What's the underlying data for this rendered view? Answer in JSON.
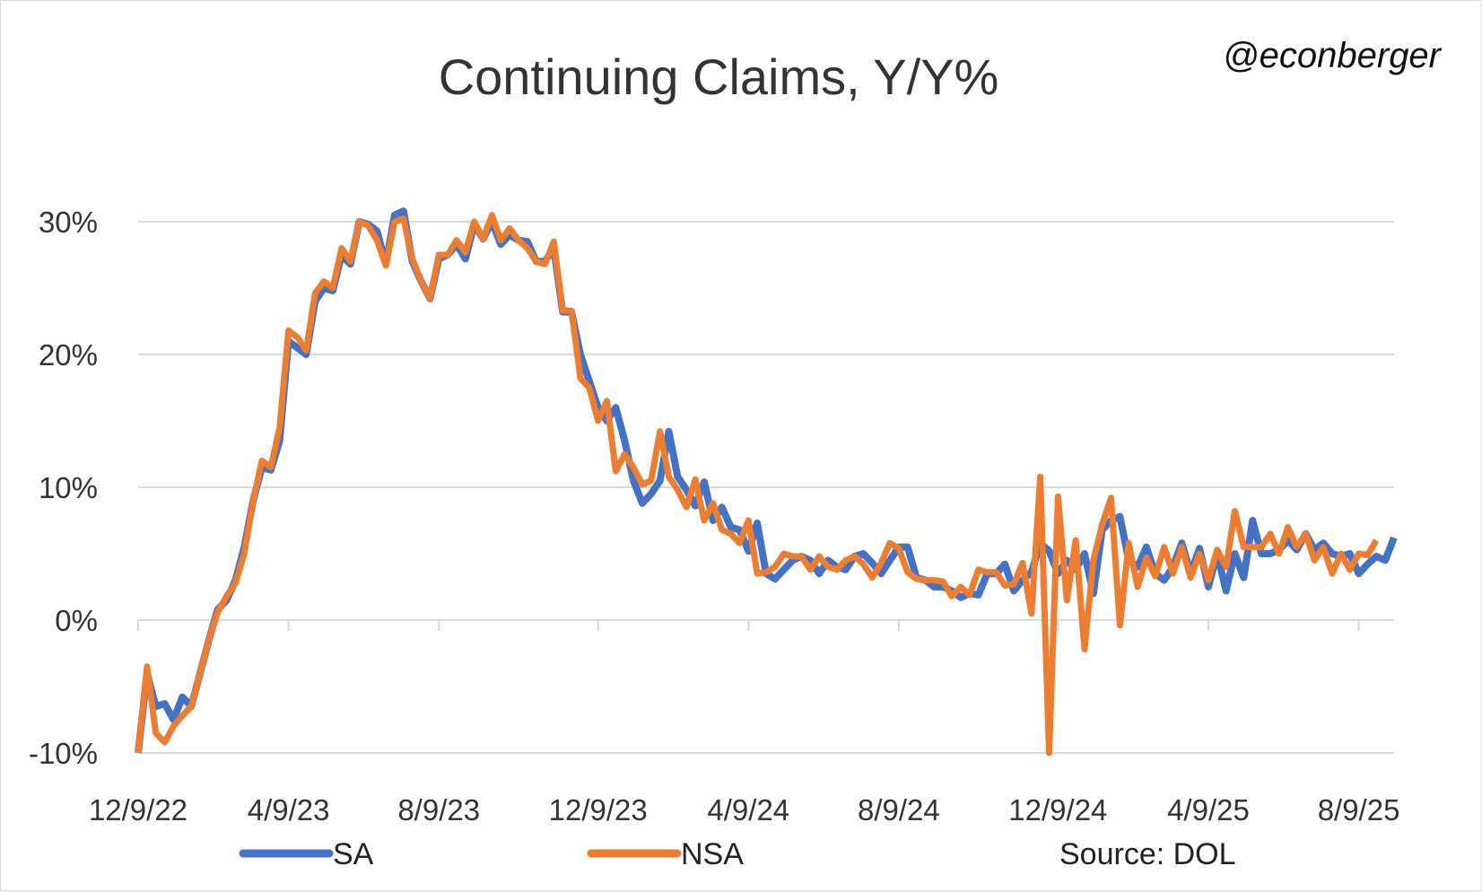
{
  "chart_data": {
    "type": "line",
    "title": "Continuing Claims, Y/Y%",
    "watermark": "@econberger",
    "source": "Source: DOL",
    "xlabel": "",
    "ylabel": "",
    "ylim": [
      -10,
      30
    ],
    "yticks": [
      {
        "value": 30,
        "label": "30%"
      },
      {
        "value": 20,
        "label": "20%"
      },
      {
        "value": 10,
        "label": "10%"
      },
      {
        "value": 0,
        "label": "0%"
      },
      {
        "value": -10,
        "label": "-10%"
      }
    ],
    "xticks": [
      {
        "label": "12/9/22",
        "index": 0
      },
      {
        "label": "4/9/23",
        "index": 17
      },
      {
        "label": "8/9/23",
        "index": 34
      },
      {
        "label": "12/9/23",
        "index": 52
      },
      {
        "label": "4/9/24",
        "index": 69
      },
      {
        "label": "8/9/24",
        "index": 86
      },
      {
        "label": "12/9/24",
        "index": 104
      },
      {
        "label": "4/9/25",
        "index": 121
      },
      {
        "label": "8/9/25",
        "index": 138
      }
    ],
    "legend_position": "bottom",
    "grid": true,
    "series": [
      {
        "name": "SA",
        "color": "#4472c4",
        "values": [
          -10,
          -4,
          -6.5,
          -6.3,
          -7.5,
          -5.8,
          -6.5,
          -4,
          -1.5,
          0.8,
          1.5,
          3,
          5.5,
          9,
          11.5,
          11.3,
          13.5,
          21,
          20.5,
          20,
          24,
          25,
          24.8,
          27.5,
          26.8,
          30,
          29.8,
          29.3,
          26.8,
          30.5,
          30.8,
          27,
          25.5,
          24.2,
          27.2,
          27.5,
          28.3,
          27.2,
          29.8,
          28.7,
          30,
          28.3,
          29,
          28.6,
          28.5,
          27,
          27,
          28,
          23.2,
          23.2,
          20,
          18,
          16,
          15,
          16,
          13.5,
          10.5,
          8.8,
          9.5,
          10.5,
          14.2,
          10.8,
          9.8,
          8.6,
          10.4,
          7.5,
          8.5,
          7,
          6.8,
          5.2,
          7.3,
          3.5,
          3.1,
          3.8,
          4.5,
          4.8,
          4.5,
          3.5,
          4.5,
          4,
          3.8,
          4.8,
          5,
          4.3,
          3.5,
          4.5,
          5.5,
          5.5,
          3.2,
          3,
          2.5,
          2.5,
          2.2,
          1.7,
          2,
          1.9,
          3.5,
          3.5,
          4.2,
          2.2,
          3,
          3.6,
          5.8,
          5.2,
          3.5,
          4.5,
          3.8,
          5,
          2,
          6.8,
          7.5,
          7.8,
          4.5,
          4,
          5.5,
          3.5,
          3,
          4,
          5.8,
          3.5,
          5.4,
          2.5,
          5,
          2.2,
          5,
          3.2,
          7.5,
          5,
          5,
          5.3,
          6,
          5.3,
          6.5,
          5.3,
          5.8,
          5,
          4.8,
          5,
          3.5,
          4.2,
          4.8,
          4.5,
          6.2
        ]
      },
      {
        "name": "NSA",
        "color": "#ed7d31",
        "values": [
          -10,
          -3.5,
          -8.5,
          -9.2,
          -8,
          -7.2,
          -6.5,
          -4,
          -1.5,
          0.6,
          1.8,
          2.8,
          5,
          9,
          12,
          11.5,
          14.5,
          21.8,
          21.3,
          20.3,
          24.6,
          25.5,
          25,
          28,
          27,
          30,
          29.7,
          28.6,
          26.7,
          30,
          30.2,
          27.2,
          25.5,
          24.2,
          27.5,
          27.5,
          28.6,
          27.7,
          30,
          28.7,
          30.5,
          28.6,
          29.5,
          28.6,
          28,
          27,
          26.8,
          28.5,
          23.3,
          23.3,
          18.2,
          17.5,
          15,
          16.5,
          11.2,
          12.5,
          11.5,
          10.2,
          10.5,
          14.2,
          10.8,
          9.8,
          8.5,
          10.6,
          7.5,
          8.8,
          6.8,
          6.5,
          5.8,
          7.5,
          3.5,
          3.6,
          4,
          5,
          4.8,
          4.8,
          3.8,
          4.8,
          4,
          3.8,
          4.5,
          4.8,
          4.2,
          3.2,
          4.3,
          5.8,
          5.4,
          3.6,
          3.1,
          3,
          3,
          2.9,
          1.8,
          2.5,
          1.9,
          3.8,
          3.6,
          3.6,
          2.6,
          2.7,
          4.3,
          0.5,
          10.8,
          -10,
          9.3,
          1.5,
          6,
          -2.2,
          4.5,
          7.2,
          9.2,
          -0.4,
          5.8,
          2.5,
          4.7,
          3.3,
          5.5,
          3.5,
          5.5,
          3.2,
          5,
          3,
          5.3,
          4,
          8.2,
          5.5,
          5.5,
          5.5,
          6.5,
          5,
          7,
          5.5,
          6.5,
          4.5,
          5.5,
          3.5,
          5,
          3.8,
          5,
          4.9,
          6
        ]
      }
    ]
  }
}
